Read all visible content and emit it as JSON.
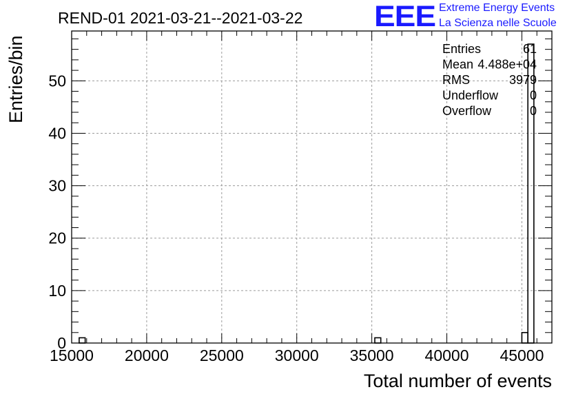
{
  "chart_data": {
    "type": "bar",
    "title": "REND-01 2021-03-21--2021-03-22",
    "xlabel": "Total number of events",
    "ylabel": "Entries/bin",
    "xlim": [
      15000,
      47000
    ],
    "ylim": [
      0,
      59.5
    ],
    "grid": true,
    "x_ticks": [
      15000,
      20000,
      25000,
      30000,
      35000,
      40000,
      45000
    ],
    "y_ticks": [
      0,
      10,
      20,
      30,
      40,
      50
    ],
    "bin_width": 400,
    "bins": [
      {
        "x0": 15500,
        "x1": 15900,
        "count": 1
      },
      {
        "x0": 35200,
        "x1": 35600,
        "count": 1
      },
      {
        "x0": 45000,
        "x1": 45400,
        "count": 2
      },
      {
        "x0": 45400,
        "x1": 45800,
        "count": 57
      }
    ],
    "stats": {
      "rows": [
        {
          "label": "Entries",
          "value": "61"
        },
        {
          "label": "Mean",
          "value": "4.488e+04"
        },
        {
          "label": "RMS",
          "value": "3979"
        },
        {
          "label": "Underflow",
          "value": "0"
        },
        {
          "label": "Overflow",
          "value": "0"
        }
      ]
    }
  },
  "logo": {
    "mark": "EEE",
    "line1": "Extreme Energy Events",
    "line2": "La Scienza nelle Scuole",
    "color": "#1a1aff"
  }
}
